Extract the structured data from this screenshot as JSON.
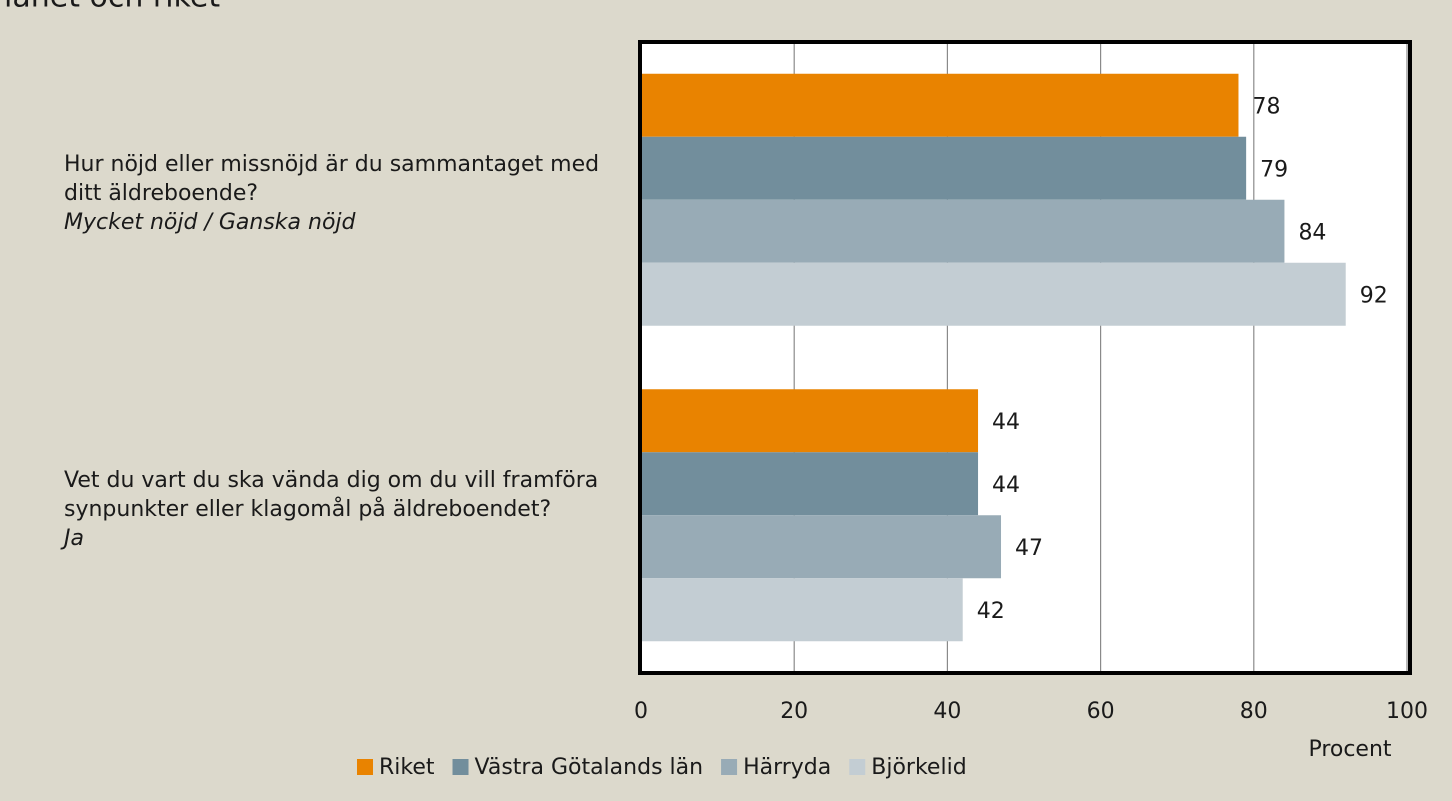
{
  "chart_data": {
    "type": "barh",
    "title": "länet och riket",
    "categories": [
      "Hur nöjd eller missnöjd är du sammantaget med ditt äldreboende?",
      "Vet du vart du ska vända dig om du vill framföra synpunkter eller klagomål på äldreboendet?"
    ],
    "category_notes": [
      "Mycket nöjd / Ganska nöjd",
      "Ja"
    ],
    "series": [
      {
        "name": "Riket",
        "color": "#e98300",
        "values": [
          78,
          44
        ]
      },
      {
        "name": "Västra Götalands län",
        "color": "#728e9c",
        "values": [
          79,
          44
        ]
      },
      {
        "name": "Härryda",
        "color": "#98abb6",
        "values": [
          84,
          47
        ]
      },
      {
        "name": "Björkelid",
        "color": "#c3cdd3",
        "values": [
          92,
          42
        ]
      }
    ],
    "xlabel": "Procent",
    "xlim": [
      0,
      100
    ],
    "xticks": [
      0,
      20,
      40,
      60,
      80,
      100
    ],
    "grid": true,
    "legend": "bottom"
  }
}
